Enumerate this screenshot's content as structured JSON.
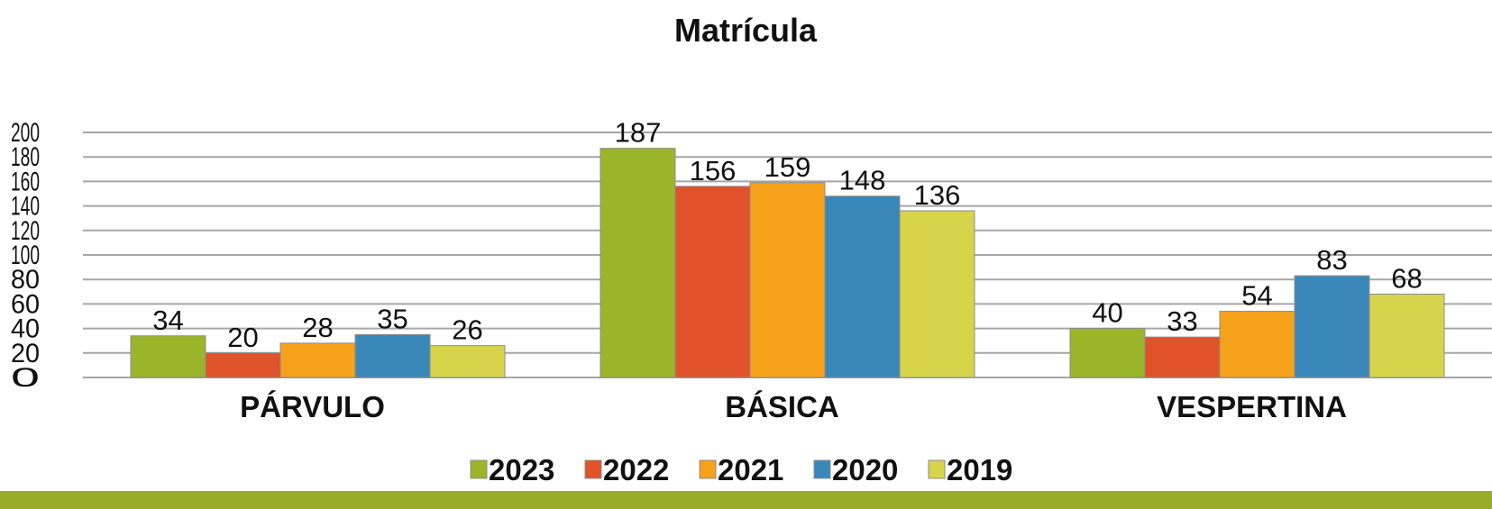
{
  "colors": {
    "background": "#ffffff",
    "grid": "#a6a6a6",
    "band": "#9aaa2a"
  },
  "chart_data": {
    "type": "bar",
    "title": "Matrícula",
    "categories": [
      "PÁRVULO",
      "BÁSICA",
      "VESPERTINA"
    ],
    "series": [
      {
        "name": "2023",
        "color": "#9bb52b",
        "values": [
          34,
          187,
          40
        ]
      },
      {
        "name": "2022",
        "color": "#e0522a",
        "values": [
          20,
          156,
          33
        ]
      },
      {
        "name": "2021",
        "color": "#f6a11a",
        "values": [
          28,
          159,
          54
        ]
      },
      {
        "name": "2020",
        "color": "#3a88ba",
        "values": [
          35,
          148,
          83
        ]
      },
      {
        "name": "2019",
        "color": "#d7d44c",
        "values": [
          26,
          136,
          68
        ]
      }
    ],
    "ylim": [
      0,
      200
    ],
    "yticks": [
      0,
      20,
      40,
      60,
      80,
      100,
      120,
      140,
      160,
      180,
      200
    ],
    "grid": true,
    "legend_position": "bottom"
  }
}
